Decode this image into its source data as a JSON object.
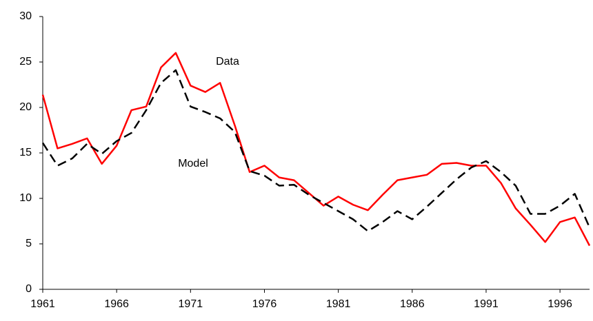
{
  "chart_data": {
    "type": "line",
    "x": [
      1961,
      1962,
      1963,
      1964,
      1965,
      1966,
      1967,
      1968,
      1969,
      1970,
      1971,
      1972,
      1973,
      1974,
      1975,
      1976,
      1977,
      1978,
      1979,
      1980,
      1981,
      1982,
      1983,
      1984,
      1985,
      1986,
      1987,
      1988,
      1989,
      1990,
      1991,
      1992,
      1993,
      1994,
      1995,
      1996,
      1997,
      1998
    ],
    "series": [
      {
        "name": "Data",
        "color": "#ff0000",
        "dashed": false,
        "values": [
          21.4,
          15.5,
          16.0,
          16.6,
          13.8,
          15.8,
          19.7,
          20.1,
          24.4,
          26.0,
          22.4,
          21.7,
          22.7,
          18.0,
          12.9,
          13.6,
          12.3,
          12.0,
          10.6,
          9.2,
          10.2,
          9.3,
          8.7,
          10.4,
          12.0,
          12.3,
          12.6,
          13.8,
          13.9,
          13.6,
          13.6,
          11.7,
          8.9,
          7.1,
          5.2,
          7.4,
          7.9,
          4.8
        ]
      },
      {
        "name": "Model",
        "color": "#000000",
        "dashed": true,
        "values": [
          16.1,
          13.6,
          14.4,
          16.0,
          14.9,
          16.3,
          17.2,
          19.7,
          22.7,
          24.1,
          20.1,
          19.5,
          18.8,
          17.3,
          13.0,
          12.5,
          11.4,
          11.5,
          10.4,
          9.5,
          8.6,
          7.7,
          6.4,
          7.4,
          8.6,
          7.7,
          9.1,
          10.6,
          12.1,
          13.4,
          14.1,
          12.9,
          11.4,
          8.3,
          8.3,
          9.2,
          10.5,
          6.8
        ]
      }
    ],
    "xlim": [
      1961,
      1998
    ],
    "xticks": [
      1961,
      1966,
      1971,
      1976,
      1981,
      1986,
      1991,
      1996
    ],
    "ylim": [
      0,
      30
    ],
    "yticks": [
      0,
      5,
      10,
      15,
      20,
      25,
      30
    ]
  }
}
